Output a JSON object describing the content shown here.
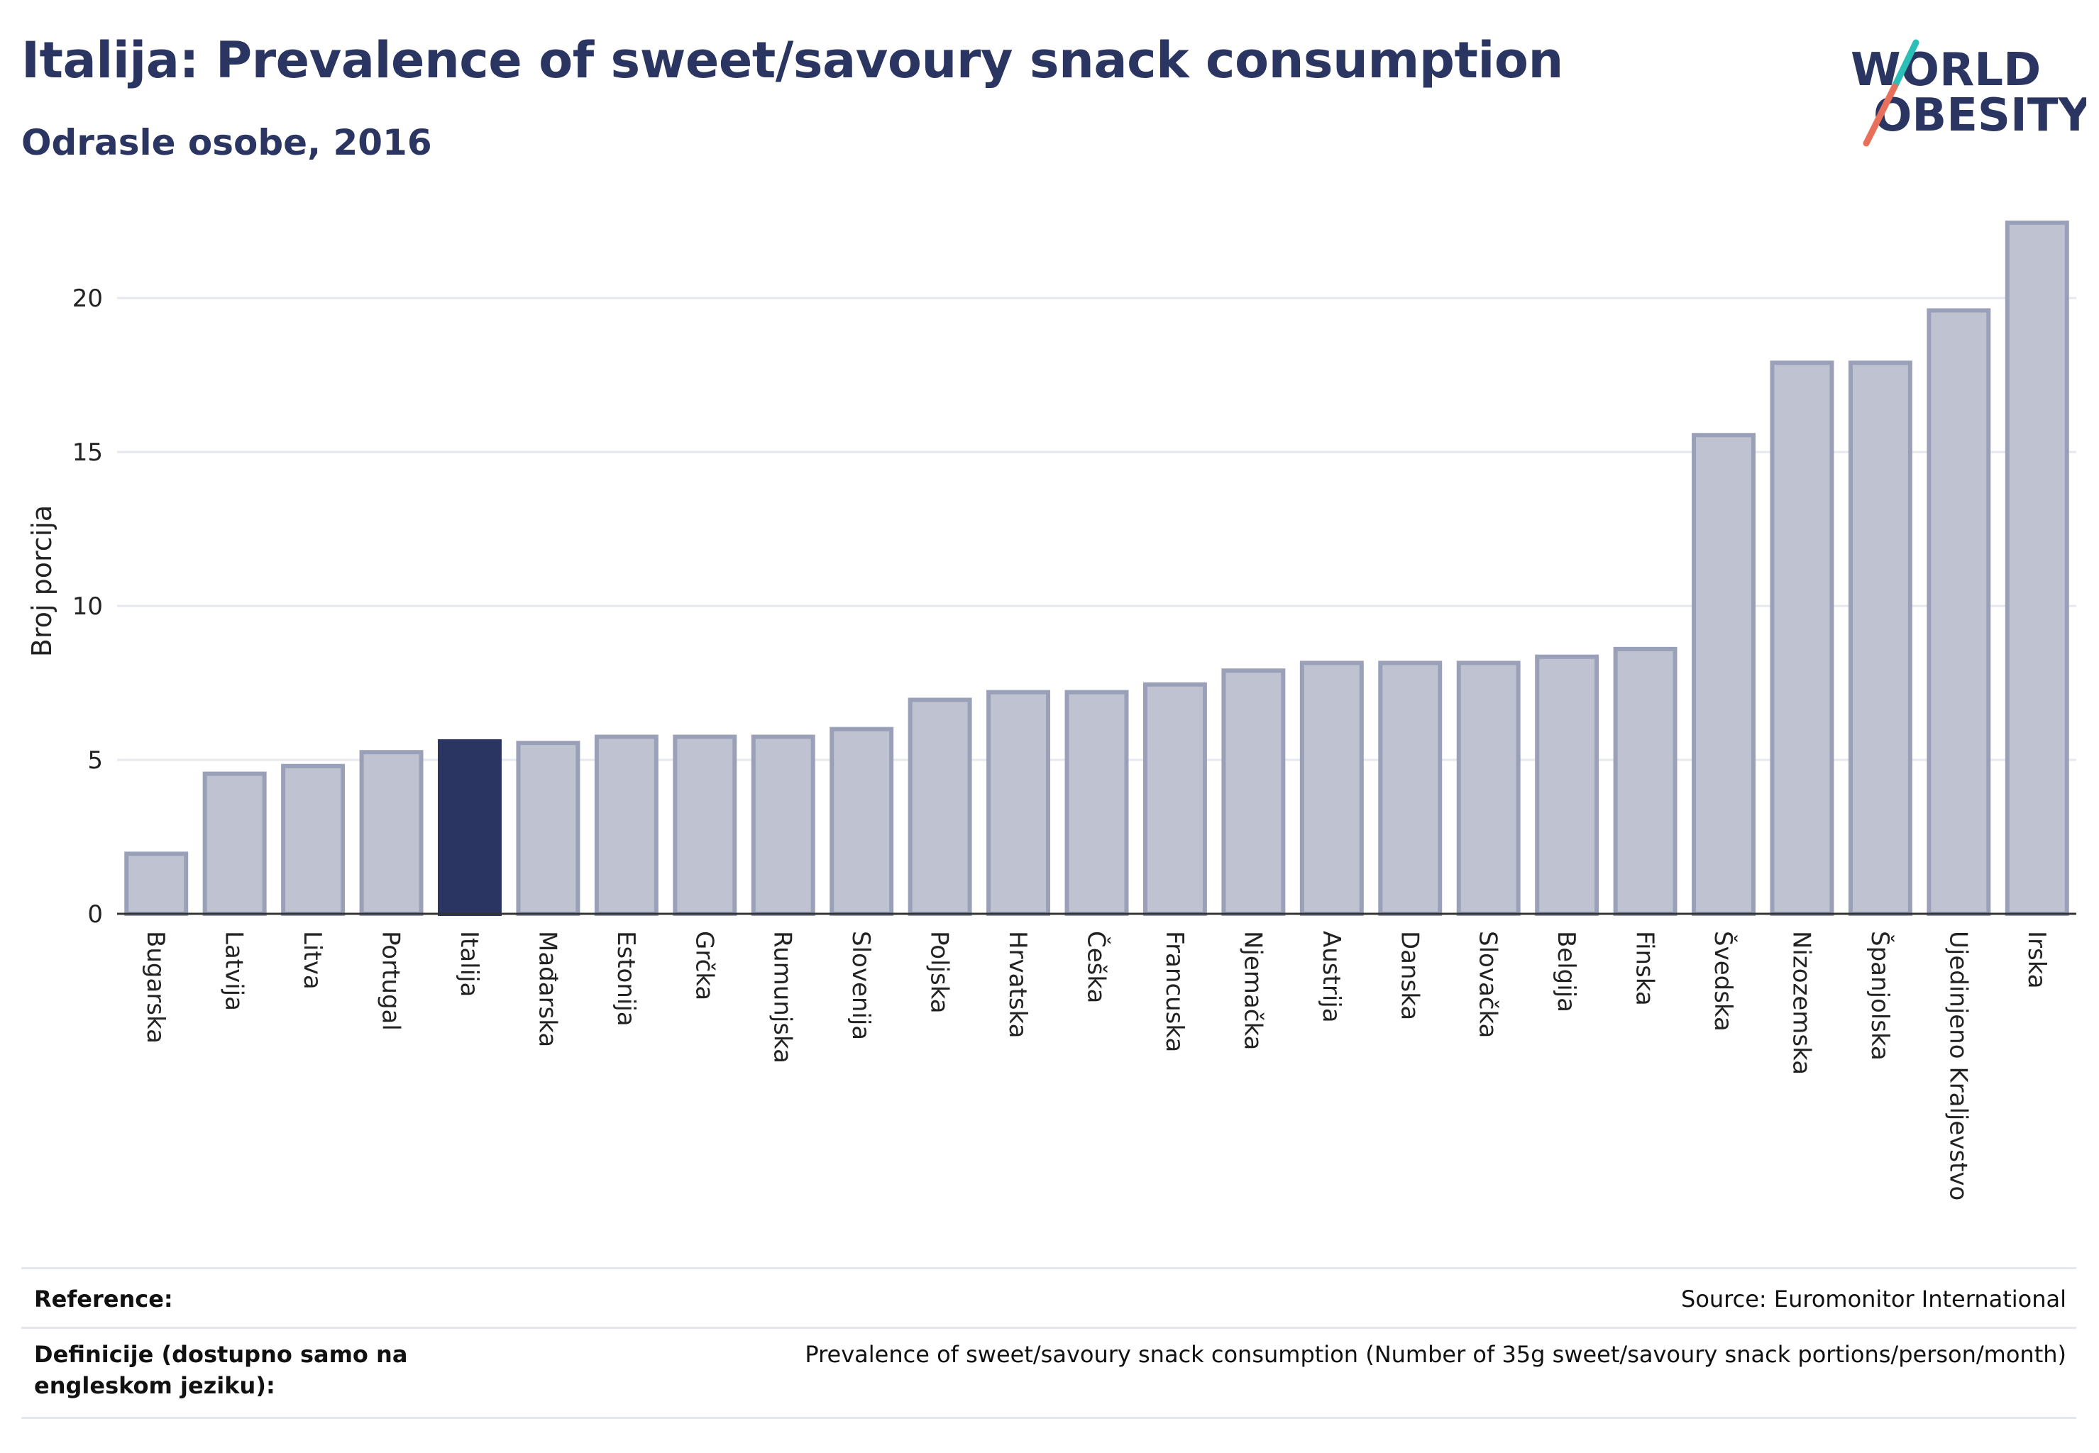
{
  "header": {
    "title": "Italija: Prevalence of sweet/savoury snack consumption",
    "subtitle": "Odrasle osobe, 2016"
  },
  "logo": {
    "line1": "WORLD",
    "line2": "OBESITY",
    "colors": {
      "text": "#2a3561",
      "slash_teal": "#2bbfb8",
      "slash_coral": "#e8705a"
    }
  },
  "chart_data": {
    "type": "bar",
    "ylabel": "Broj porcija",
    "xlabel": "",
    "ylim": [
      0,
      23
    ],
    "yticks": [
      0,
      5,
      10,
      15,
      20
    ],
    "grid": true,
    "highlight": "Italija",
    "colors": {
      "bar": "#bfc2d1",
      "bar_edge": "#9aa0b8",
      "highlight": "#2a3561"
    },
    "categories": [
      "Bugarska",
      "Latvija",
      "Litva",
      "Portugal",
      "Italija",
      "Mađarska",
      "Estonija",
      "Grčka",
      "Rumunjska",
      "Slovenija",
      "Poljska",
      "Hrvatska",
      "Češka",
      "Francuska",
      "Njemačka",
      "Austrija",
      "Danska",
      "Slovačka",
      "Belgija",
      "Finska",
      "Švedska",
      "Nizozemska",
      "Španjolska",
      "Ujedinjeno Kraljevstvo",
      "Irska"
    ],
    "values": [
      1.95,
      4.55,
      4.8,
      5.25,
      5.6,
      5.55,
      5.75,
      5.75,
      5.75,
      6.0,
      6.95,
      7.2,
      7.2,
      7.45,
      7.9,
      8.15,
      8.15,
      8.15,
      8.35,
      8.6,
      15.55,
      17.9,
      17.9,
      19.6,
      22.45
    ]
  },
  "footer": {
    "reference_label": "Reference:",
    "reference_value": "Source: Euromonitor International",
    "definition_label": "Definicije (dostupno samo na engleskom jeziku):",
    "definition_value": "Prevalence of sweet/savoury snack consumption (Number of 35g sweet/savoury snack portions/person/month)"
  }
}
